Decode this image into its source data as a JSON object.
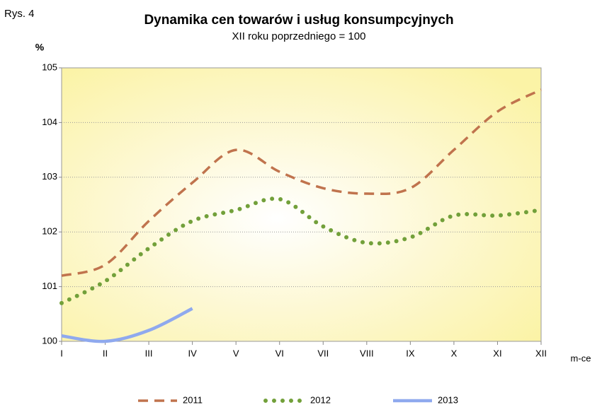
{
  "figure_label": "Rys. 4",
  "chart_data": {
    "type": "line",
    "title": "Dynamika cen towarów i usług konsumpcyjnych",
    "subtitle": "XII roku poprzedniego = 100",
    "y_label": "%",
    "x_label": "m-ce",
    "categories": [
      "I",
      "II",
      "III",
      "IV",
      "V",
      "VI",
      "VII",
      "VIII",
      "IX",
      "X",
      "XI",
      "XII"
    ],
    "series": [
      {
        "name": "2011",
        "color": "#c0734d",
        "style": "dashed",
        "values": [
          101.2,
          101.4,
          102.2,
          102.9,
          103.5,
          103.1,
          102.8,
          102.7,
          102.8,
          103.5,
          104.2,
          104.6
        ]
      },
      {
        "name": "2012",
        "color": "#72a03a",
        "style": "dotted",
        "values": [
          100.7,
          101.1,
          101.7,
          102.2,
          102.4,
          102.6,
          102.1,
          101.8,
          101.9,
          102.3,
          102.3,
          102.4
        ]
      },
      {
        "name": "2013",
        "color": "#8fa9ee",
        "style": "solid",
        "values": [
          100.1,
          100.0,
          100.2,
          100.6,
          null,
          null,
          null,
          null,
          null,
          null,
          null,
          null
        ]
      }
    ],
    "ylim": [
      100,
      105
    ],
    "yticks": [
      100,
      101,
      102,
      103,
      104,
      105
    ],
    "grid": true,
    "legend": "bottom"
  }
}
